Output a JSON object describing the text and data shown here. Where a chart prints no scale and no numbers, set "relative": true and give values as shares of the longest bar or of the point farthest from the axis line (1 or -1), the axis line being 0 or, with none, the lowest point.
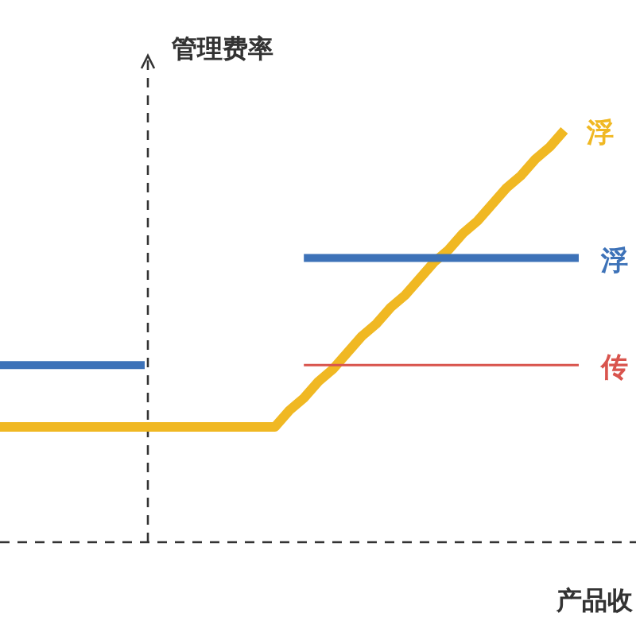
{
  "chart_data": {
    "type": "line",
    "relative": true,
    "ylabel": "管理费率",
    "xlabel": "产品收",
    "categories": [
      null,
      null,
      null,
      null,
      null,
      null,
      null,
      null,
      null,
      null,
      null,
      null,
      null,
      null,
      null,
      null,
      null,
      null,
      null,
      null,
      null,
      null,
      null,
      null,
      null,
      null,
      null,
      null,
      null,
      null,
      null,
      null,
      null,
      null,
      null,
      null,
      null,
      null,
      null,
      null,
      null
    ],
    "series": [
      {
        "name": "浮",
        "color": "#f0b823",
        "values": [
          0.28,
          0.28,
          0.28,
          0.28,
          0.28,
          0.28,
          0.28,
          0.28,
          0.28,
          0.28,
          0.28,
          0.28,
          0.28,
          0.28,
          0.28,
          0.28,
          0.28,
          0.28,
          0.28,
          0.28,
          0.32,
          0.35,
          0.39,
          0.42,
          0.46,
          0.5,
          0.53,
          0.57,
          0.6,
          0.64,
          0.68,
          0.71,
          0.75,
          0.78,
          0.82,
          0.86,
          0.89,
          0.93,
          0.96,
          1,
          null
        ]
      },
      {
        "name": "浮",
        "color": "#3d72b8",
        "values": [
          0.43,
          0.43,
          0.43,
          0.43,
          0.43,
          0.43,
          0.43,
          0.43,
          0.43,
          0.43,
          0.43,
          null,
          null,
          null,
          null,
          null,
          null,
          null,
          null,
          null,
          null,
          0.69,
          0.69,
          0.69,
          0.69,
          0.69,
          0.69,
          0.69,
          0.69,
          0.69,
          0.69,
          0.69,
          0.69,
          0.69,
          0.69,
          0.69,
          0.69,
          0.69,
          0.69,
          0.69,
          0.69
        ]
      },
      {
        "name": "传",
        "color": "#d9544d",
        "values": [
          null,
          null,
          null,
          null,
          null,
          null,
          null,
          null,
          null,
          null,
          null,
          null,
          null,
          null,
          null,
          null,
          null,
          null,
          null,
          null,
          null,
          0.43,
          0.43,
          0.43,
          0.43,
          0.43,
          0.43,
          0.43,
          0.43,
          0.43,
          0.43,
          0.43,
          0.43,
          0.43,
          0.43,
          0.43,
          0.43,
          0.43,
          0.43,
          0.43,
          0.43
        ]
      }
    ]
  }
}
